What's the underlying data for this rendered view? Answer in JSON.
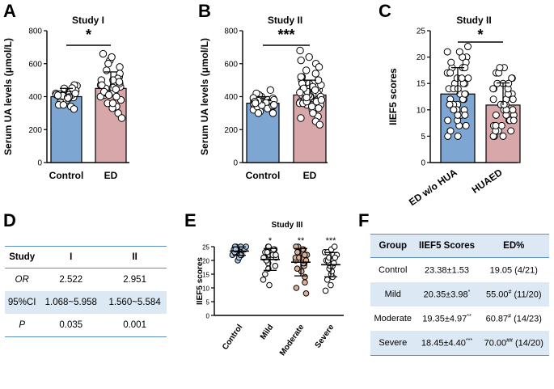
{
  "panel_letters": [
    "A",
    "B",
    "C",
    "D",
    "E",
    "F"
  ],
  "significance": {
    "A": "*",
    "B": "***",
    "C": "*"
  },
  "chart_data": [
    {
      "panel": "A",
      "type": "bar",
      "title": "Study I",
      "ylabel": "Serum UA levels (μmol/L)",
      "xlabel": "",
      "ylim": [
        0,
        800
      ],
      "yticks": [
        "0",
        "200",
        "400",
        "600",
        "800"
      ],
      "categories": [
        "Control",
        "ED"
      ],
      "values": [
        400,
        450
      ],
      "sd": [
        50,
        100
      ],
      "colors": [
        "#7ea6d3",
        "#d8a7aa"
      ],
      "points": [
        [
          415,
          400,
          385,
          425,
          405,
          395,
          410,
          390,
          430,
          380,
          420,
          400,
          410,
          388,
          432,
          372,
          445,
          356,
          466,
          340,
          470,
          325,
          412,
          398,
          436,
          366,
          452,
          350,
          420,
          400,
          405,
          395,
          350,
          450,
          392,
          408
        ],
        [
          300,
          620,
          450,
          440,
          470,
          360,
          520,
          410,
          580,
          480,
          340,
          500,
          430,
          460,
          330,
          640,
          470,
          430,
          380,
          540,
          400,
          510,
          480,
          420,
          660,
          270,
          455,
          445,
          500,
          400,
          360,
          560,
          430,
          470,
          600,
          490,
          410
        ]
      ]
    },
    {
      "panel": "B",
      "type": "bar",
      "title": "Study II",
      "ylabel": "Serum UA levels (μmol/L)",
      "xlabel": "",
      "ylim": [
        0,
        800
      ],
      "yticks": [
        "0",
        "200",
        "400",
        "600",
        "800"
      ],
      "categories": [
        "Control",
        "ED"
      ],
      "values": [
        360,
        410
      ],
      "sd": [
        40,
        90
      ],
      "colors": [
        "#7ea6d3",
        "#d8a7aa"
      ],
      "points": [
        [
          360,
          370,
          350,
          380,
          340,
          390,
          355,
          365,
          345,
          375,
          360,
          400,
          320,
          410,
          310,
          420,
          300,
          360,
          380,
          340,
          350,
          370,
          365,
          355,
          362,
          358,
          372,
          348,
          392,
          328,
          440,
          300,
          345,
          375,
          370,
          350,
          360
        ],
        [
          400,
          420,
          380,
          450,
          370,
          440,
          390,
          500,
          350,
          460,
          330,
          480,
          360,
          410,
          430,
          520,
          300,
          540,
          280,
          560,
          420,
          400,
          390,
          430,
          370,
          450,
          350,
          470,
          410,
          400,
          600,
          250,
          640,
          680,
          230,
          580,
          440,
          380,
          420,
          400,
          500,
          320,
          460,
          360,
          480,
          340,
          410,
          410,
          430,
          390,
          370,
          450,
          395,
          425,
          300,
          520,
          620,
          270,
          440,
          380
        ]
      ]
    },
    {
      "panel": "C",
      "type": "bar",
      "title": "Study II",
      "ylabel": "IIEF5 scores",
      "xlabel": "",
      "ylim": [
        0,
        25
      ],
      "yticks": [
        "0",
        "5",
        "10",
        "15",
        "20",
        "25"
      ],
      "categories": [
        "ED w/o HUA",
        "HUAED"
      ],
      "values": [
        13,
        10.9
      ],
      "sd": [
        5,
        4.2
      ],
      "colors": [
        "#7ea6d3",
        "#d8a7aa"
      ],
      "points": [
        [
          5,
          6,
          7,
          8,
          9,
          10,
          11,
          12,
          13,
          14,
          15,
          16,
          17,
          18,
          19,
          20,
          21,
          22,
          5,
          6,
          7,
          8,
          9,
          10,
          11,
          12,
          13,
          14,
          15,
          16,
          17,
          18,
          19,
          20,
          21,
          14,
          15,
          16,
          17,
          18,
          9,
          10,
          11,
          12,
          13
        ],
        [
          5,
          6,
          7,
          8,
          9,
          10,
          11,
          12,
          13,
          14,
          15,
          16,
          17,
          18,
          5,
          6,
          7,
          8,
          9,
          10,
          11,
          12,
          13,
          14,
          15,
          16,
          17,
          18,
          5,
          6,
          7,
          8,
          9,
          10,
          11,
          12,
          13,
          14,
          15
        ]
      ]
    },
    {
      "panel": "E",
      "type": "scatter",
      "title": "Study III",
      "ylabel": "IIEF5 scores",
      "xlabel": "",
      "ylim": [
        0,
        25
      ],
      "yticks": [
        "0",
        "5",
        "10",
        "15",
        "20",
        "25"
      ],
      "categories": [
        "Control",
        "Mild",
        "Moderate",
        "Severe"
      ],
      "means": [
        23.38,
        20.35,
        19.35,
        18.45
      ],
      "sd": [
        1.53,
        3.98,
        4.97,
        4.4
      ],
      "stars": [
        "",
        "*",
        "**",
        "***"
      ],
      "colors": [
        "#a9c8e6",
        "#f2f2f2",
        "#d9b199",
        "#ffffff"
      ],
      "points": [
        [
          20,
          21,
          22,
          22,
          23,
          23,
          23,
          24,
          24,
          24,
          24,
          24,
          25,
          25,
          25,
          25,
          24,
          23,
          22,
          25,
          24
        ],
        [
          11,
          13,
          15,
          17,
          18,
          19,
          20,
          21,
          21,
          22,
          22,
          22,
          23,
          23,
          24,
          24,
          25,
          25,
          20,
          21
        ],
        [
          8,
          10,
          12,
          14,
          16,
          17,
          18,
          19,
          19,
          20,
          20,
          21,
          21,
          22,
          22,
          23,
          23,
          24,
          24,
          25,
          21,
          25,
          20
        ],
        [
          9,
          11,
          13,
          14,
          15,
          16,
          17,
          18,
          18,
          19,
          19,
          20,
          20,
          21,
          22,
          23,
          23,
          24,
          25,
          21
        ]
      ]
    }
  ],
  "tableD": {
    "headers": [
      "Study",
      "I",
      "II"
    ],
    "rows": [
      [
        "OR",
        "2.522",
        "2.951"
      ],
      [
        "95%CI",
        "1.068~5.958",
        "1.560~5.584"
      ],
      [
        "P",
        "0.035",
        "0.001"
      ]
    ]
  },
  "tableF": {
    "headers": [
      "Group",
      "IIEF5 Scores",
      "ED%"
    ],
    "rows": [
      {
        "group": "Control",
        "score": "23.38±1.53",
        "score_sup": "",
        "ed": "19.05",
        "ed_sup": "",
        "ed_count": " (4/21)"
      },
      {
        "group": "Mild",
        "score": "20.35±3.98",
        "score_sup": "*",
        "ed": "55.00",
        "ed_sup": "#",
        "ed_count": " (11/20)"
      },
      {
        "group": "Moderate",
        "score": "19.35±4.97",
        "score_sup": "**",
        "ed": "60.87",
        "ed_sup": "#",
        "ed_count": " (14/23)"
      },
      {
        "group": "Severe",
        "score": "18.45±4.40",
        "score_sup": "***",
        "ed": "70.00",
        "ed_sup": "##",
        "ed_count": " (14/20)"
      }
    ]
  }
}
